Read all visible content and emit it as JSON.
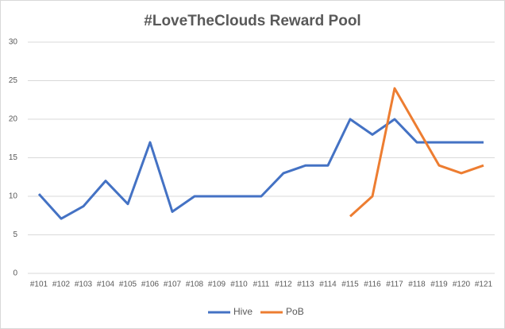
{
  "chart_data": {
    "type": "line",
    "title": "#LoveTheClouds Reward Pool",
    "categories": [
      "#101",
      "#102",
      "#103",
      "#104",
      "#105",
      "#106",
      "#107",
      "#108",
      "#109",
      "#110",
      "#111",
      "#112",
      "#113",
      "#114",
      "#115",
      "#116",
      "#117",
      "#118",
      "#119",
      "#120",
      "#121"
    ],
    "series": [
      {
        "name": "Hive",
        "color": "#4472c4",
        "values": [
          10.3,
          7.1,
          8.7,
          12,
          9,
          17,
          8,
          10,
          10,
          10,
          10,
          13,
          14,
          14,
          20,
          18,
          20,
          17,
          17,
          17,
          17
        ]
      },
      {
        "name": "PoB",
        "color": "#ed7d31",
        "values": [
          null,
          null,
          null,
          null,
          null,
          null,
          null,
          null,
          null,
          null,
          null,
          null,
          null,
          null,
          7.4,
          10,
          24,
          19,
          14,
          13,
          14
        ]
      }
    ],
    "ylim": [
      0,
      30
    ],
    "yticks": [
      0,
      5,
      10,
      15,
      20,
      25,
      30
    ],
    "grid": true,
    "legend": "bottom"
  }
}
